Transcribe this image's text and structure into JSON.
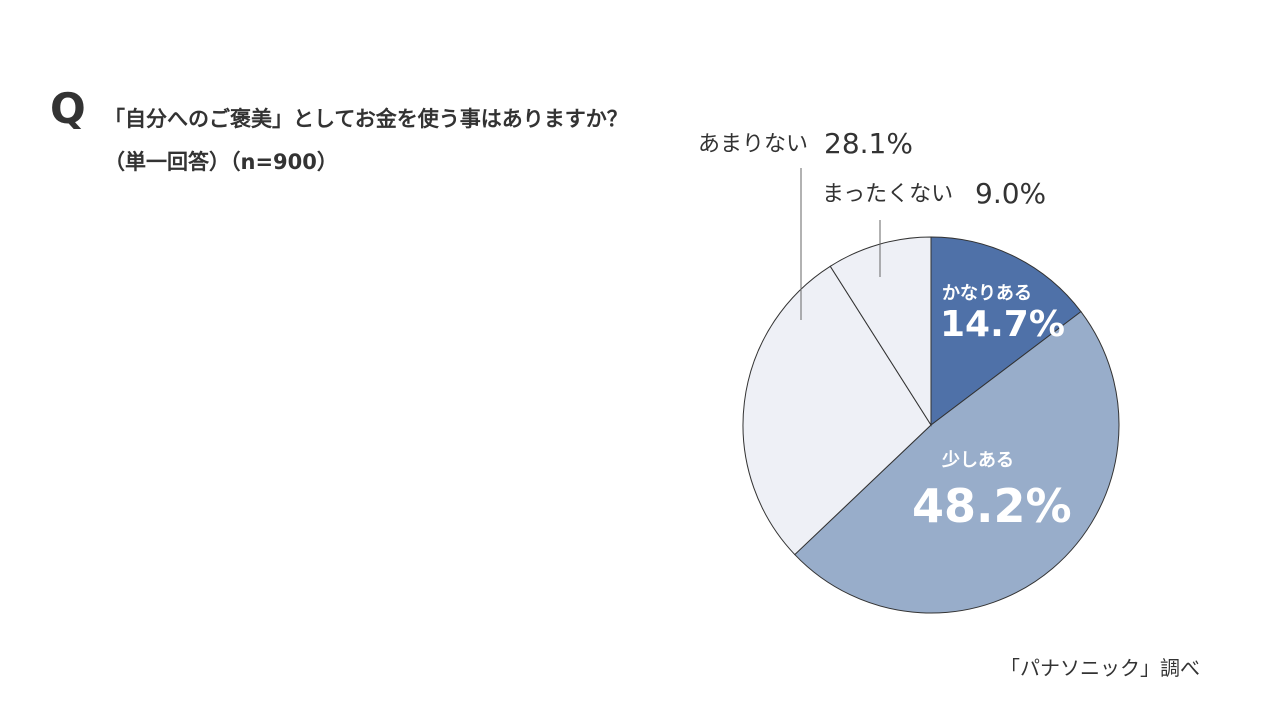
{
  "header": {
    "q_mark": "Q",
    "title": "「自分へのご褒美」としてお金を使う事はありますか？",
    "subtitle": "（単一回答）（n=900）"
  },
  "source": "「パナソニック」調べ",
  "chart_data": {
    "type": "pie",
    "title": "「自分へのご褒美」としてお金を使う事はありますか？",
    "subtitle": "（単一回答）（n=900）",
    "start": "top",
    "direction": "clockwise",
    "slices": [
      {
        "label": "かなりある",
        "value": 14.7,
        "display": "14.7%",
        "color": "#4f71a8"
      },
      {
        "label": "少しある",
        "value": 48.2,
        "display": "48.2%",
        "color": "#98adca"
      },
      {
        "label": "あまりない",
        "value": 28.1,
        "display": "28.1%",
        "color": "#eef0f6"
      },
      {
        "label": "まったくない",
        "value": 9.0,
        "display": "9.0%",
        "color": "#eef0f6"
      }
    ]
  }
}
